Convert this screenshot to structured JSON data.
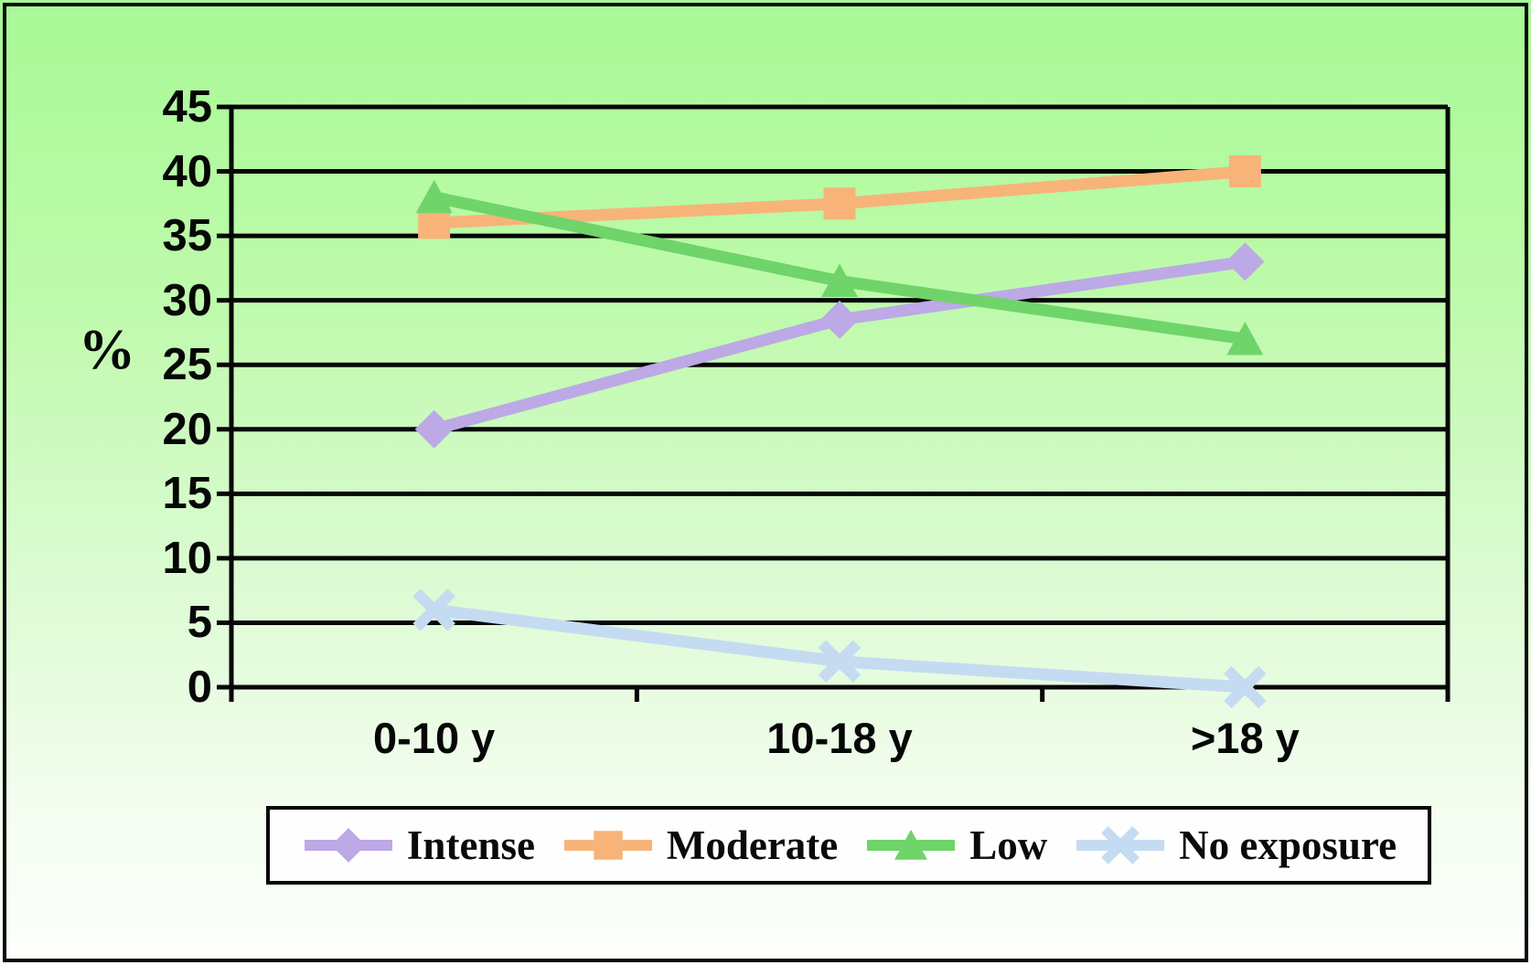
{
  "chart_data": {
    "type": "line",
    "title": "",
    "categories": [
      "0-10 y",
      "10-18 y",
      ">18 y"
    ],
    "series": [
      {
        "name": "Intense",
        "marker": "diamond",
        "color": "#bca9e6",
        "values": [
          20,
          28.5,
          33
        ]
      },
      {
        "name": "Moderate",
        "marker": "square",
        "color": "#f8b379",
        "values": [
          36,
          37.5,
          40
        ]
      },
      {
        "name": "Low",
        "marker": "triangle",
        "color": "#6fd469",
        "values": [
          38,
          31.5,
          27
        ]
      },
      {
        "name": "No exposure",
        "marker": "x",
        "color": "#c5dbf2",
        "values": [
          6,
          2,
          0
        ]
      }
    ],
    "xlabel": "",
    "ylabel": "%",
    "ylim": [
      0,
      45
    ],
    "yticks": [
      0,
      5,
      10,
      15,
      20,
      25,
      30,
      35,
      40,
      45
    ],
    "grid": true,
    "legend_position": "bottom",
    "axis_color": "#060606",
    "background_top": "#a8f996",
    "background_bottom": "#fdfffd",
    "legend_background": "#fefefe"
  }
}
